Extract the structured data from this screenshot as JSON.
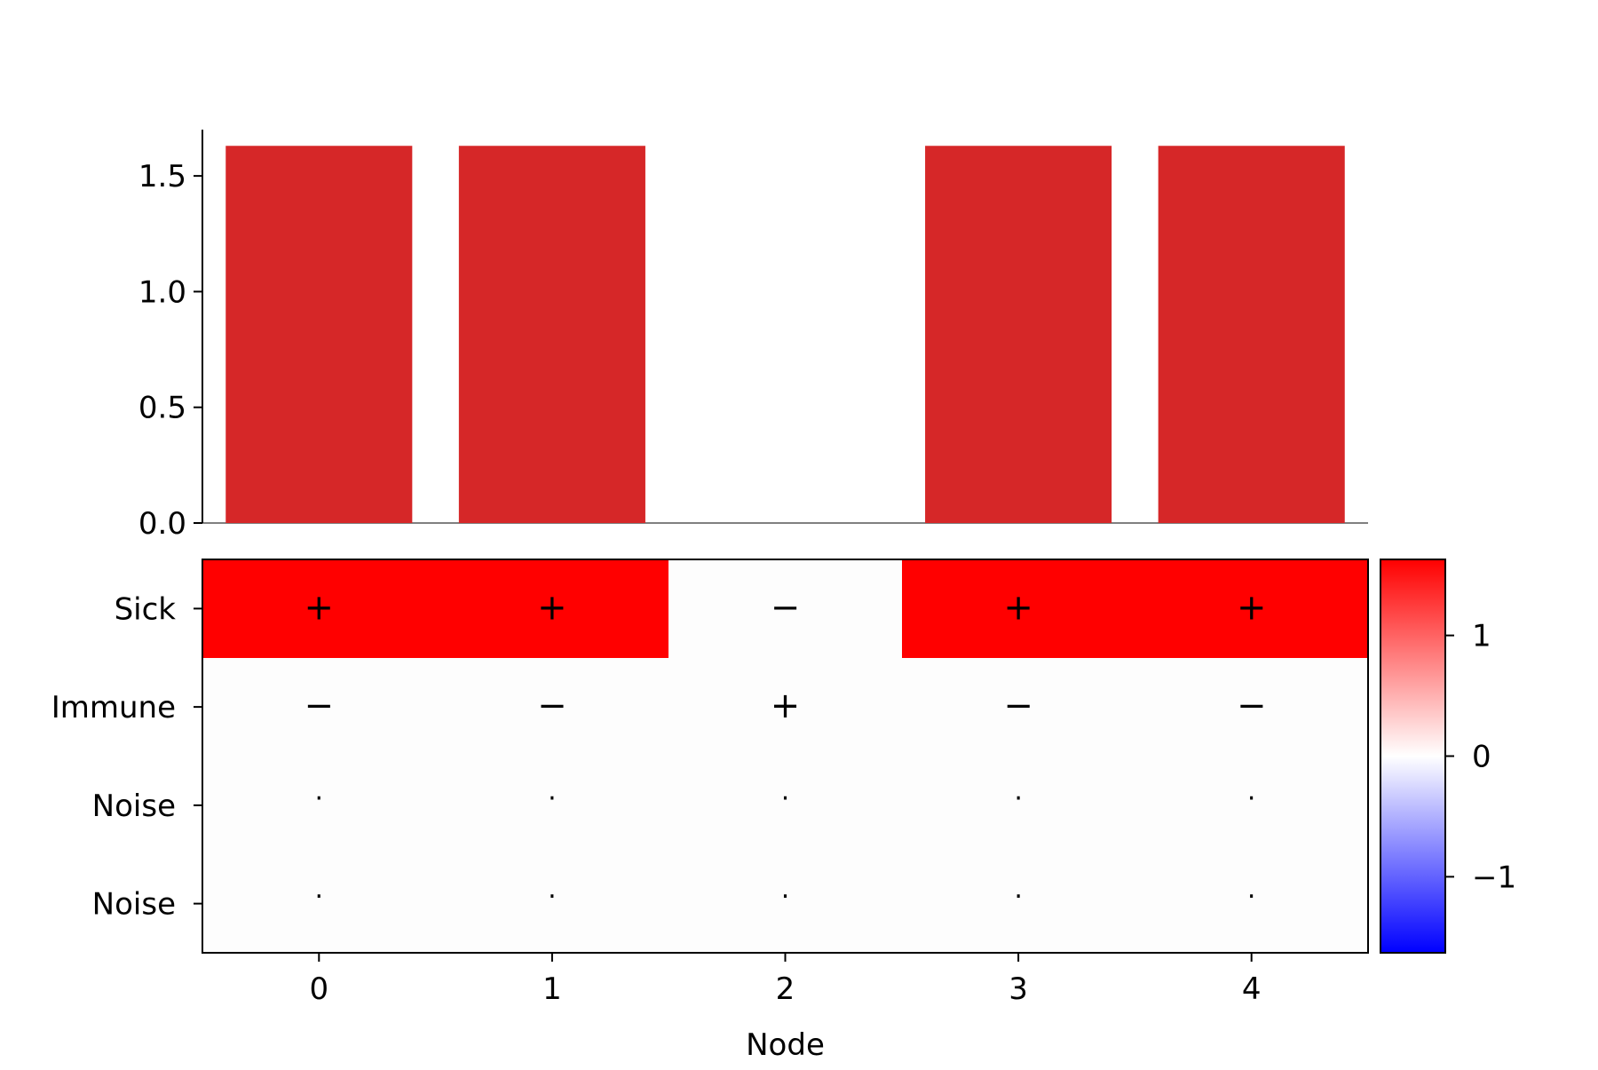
{
  "chart_data": [
    {
      "type": "bar",
      "categories": [
        "0",
        "1",
        "2",
        "3",
        "4"
      ],
      "values": [
        1.63,
        1.63,
        0,
        1.63,
        1.63
      ],
      "ylim": [
        0,
        1.7
      ],
      "yticks": [
        "0.0",
        "0.5",
        "1.0",
        "1.5"
      ],
      "ytick_values": [
        0,
        0.5,
        1.0,
        1.5
      ],
      "bar_color": "#d62728",
      "grid": false,
      "xlabel": "",
      "ylabel": ""
    },
    {
      "type": "heatmap",
      "x": [
        "0",
        "1",
        "2",
        "3",
        "4"
      ],
      "y": [
        "Sick",
        "Immune",
        "Noise",
        "Noise"
      ],
      "values": [
        [
          1.63,
          1.63,
          0,
          1.63,
          1.63
        ],
        [
          0,
          0,
          0,
          0,
          0
        ],
        [
          0,
          0,
          0,
          0,
          0
        ],
        [
          0,
          0,
          0,
          0,
          0
        ]
      ],
      "annotations": [
        [
          "+",
          "+",
          "−",
          "+",
          "+"
        ],
        [
          "−",
          "−",
          "+",
          "−",
          "−"
        ],
        [
          "·",
          "·",
          "·",
          "·",
          "·"
        ],
        [
          "·",
          "·",
          "·",
          "·",
          "·"
        ]
      ],
      "xlabel": "Node",
      "colormap": "bwr",
      "colors": {
        "low": "#0000ff",
        "mid": "#ffffff",
        "high": "#ff0000"
      },
      "colorbar": {
        "range": [
          -1.63,
          1.63
        ],
        "ticks": [
          "1",
          "0",
          "−1"
        ],
        "tick_values": [
          1,
          0,
          -1
        ]
      }
    }
  ]
}
